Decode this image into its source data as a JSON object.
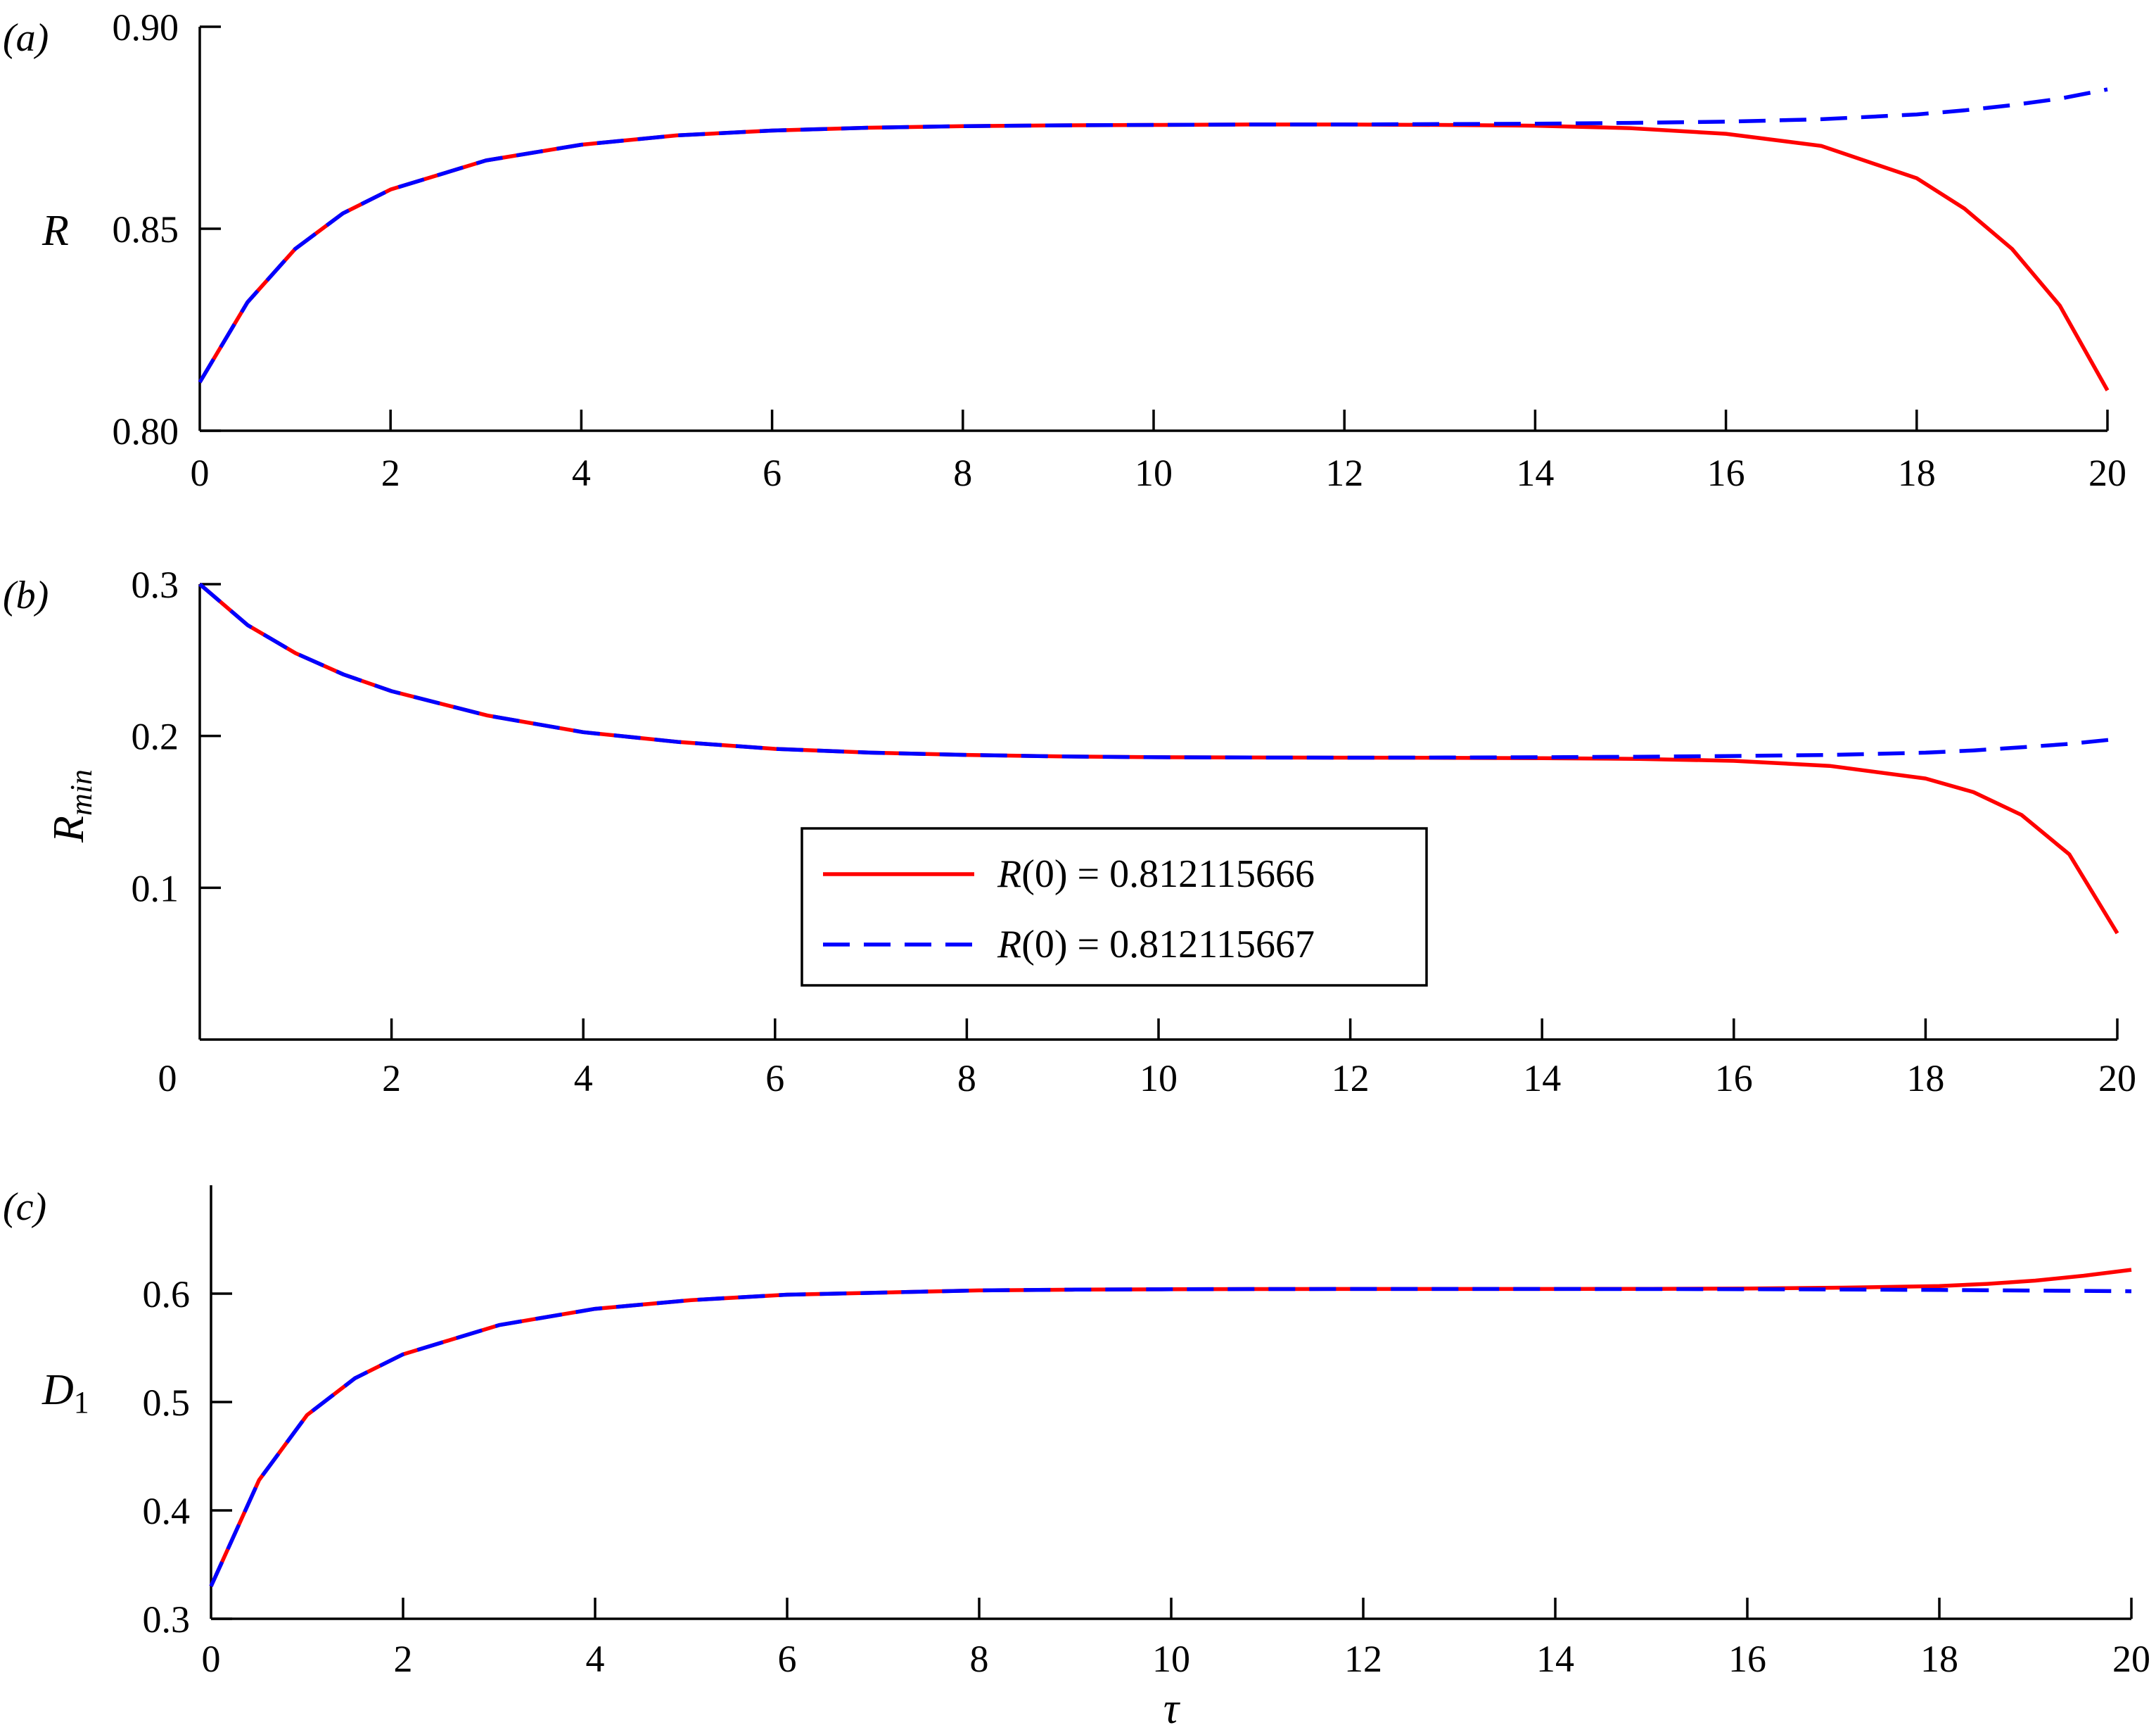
{
  "chart_data": [
    {
      "type": "line",
      "panel_label": "(a)",
      "ylabel": "R",
      "xlabel": "",
      "xlim": [
        0,
        20
      ],
      "ylim": [
        0.8,
        0.9
      ],
      "xticks": [
        "0",
        "2",
        "4",
        "6",
        "8",
        "10",
        "12",
        "14",
        "16",
        "18",
        "20"
      ],
      "xtick_values": [
        0,
        2,
        4,
        6,
        8,
        10,
        12,
        14,
        16,
        18,
        20
      ],
      "yticks": [
        "0.80",
        "0.85",
        "0.90"
      ],
      "ytick_values": [
        0.8,
        0.85,
        0.9
      ],
      "x": [
        0,
        0.5,
        1,
        1.5,
        2,
        3,
        4,
        5,
        6,
        7,
        8,
        9,
        10,
        11,
        12,
        13,
        14,
        15,
        16,
        17,
        18,
        18.5,
        19,
        19.5,
        20
      ],
      "series": [
        {
          "color": "#ff0000",
          "dash": "solid",
          "values": [
            0.812,
            0.8318,
            0.845,
            0.8538,
            0.8597,
            0.8669,
            0.8708,
            0.8731,
            0.8743,
            0.875,
            0.8754,
            0.8756,
            0.8757,
            0.8758,
            0.8758,
            0.8757,
            0.8755,
            0.8749,
            0.8735,
            0.8705,
            0.8625,
            0.855,
            0.845,
            0.831,
            0.81
          ]
        },
        {
          "color": "#0000ff",
          "dash": "dashed",
          "values": [
            0.812,
            0.8318,
            0.845,
            0.8538,
            0.8597,
            0.8669,
            0.8708,
            0.8731,
            0.8743,
            0.875,
            0.8754,
            0.8756,
            0.8757,
            0.8758,
            0.8758,
            0.8759,
            0.876,
            0.8762,
            0.8765,
            0.8771,
            0.8783,
            0.8793,
            0.8806,
            0.8822,
            0.8845
          ]
        }
      ],
      "legend": null
    },
    {
      "type": "line",
      "panel_label": "(b)",
      "ylabel": "R",
      "ylabel_sub": "min",
      "xlabel": "",
      "xlim": [
        0,
        20
      ],
      "ylim": [
        0.0,
        0.3
      ],
      "xticks": [
        "0",
        "2",
        "4",
        "6",
        "8",
        "10",
        "12",
        "14",
        "16",
        "18",
        "20"
      ],
      "xtick_values": [
        0,
        2,
        4,
        6,
        8,
        10,
        12,
        14,
        16,
        18,
        20
      ],
      "yticks": [
        "0.1",
        "0.2",
        "0.3"
      ],
      "ytick_values": [
        0.1,
        0.2,
        0.3
      ],
      "x": [
        0,
        0.5,
        1,
        1.5,
        2,
        3,
        4,
        5,
        6,
        7,
        8,
        9,
        10,
        11,
        12,
        13,
        14,
        15,
        16,
        17,
        18,
        18.5,
        19,
        19.5,
        20
      ],
      "series": [
        {
          "name": "R(0) = 0.812115666",
          "color": "#ff0000",
          "dash": "solid",
          "values": [
            0.3,
            0.273,
            0.2545,
            0.2405,
            0.2295,
            0.2135,
            0.2025,
            0.196,
            0.1915,
            0.189,
            0.1875,
            0.1865,
            0.186,
            0.1858,
            0.1857,
            0.1856,
            0.1854,
            0.1849,
            0.1836,
            0.1803,
            0.172,
            0.163,
            0.148,
            0.122,
            0.07
          ]
        },
        {
          "name": "R(0) = 0.812115667",
          "color": "#0000ff",
          "dash": "dashed",
          "values": [
            0.3,
            0.273,
            0.2545,
            0.2405,
            0.2295,
            0.2135,
            0.2025,
            0.196,
            0.1915,
            0.189,
            0.1875,
            0.1865,
            0.186,
            0.1858,
            0.1857,
            0.1858,
            0.186,
            0.1863,
            0.1868,
            0.1875,
            0.189,
            0.1905,
            0.1925,
            0.1948,
            0.198
          ]
        }
      ],
      "legend": {
        "position": "center",
        "entries": [
          {
            "prefix": "R",
            "text": "(0) = 0.812115666",
            "color": "#ff0000",
            "dash": "solid"
          },
          {
            "prefix": "R",
            "text": "(0) = 0.812115667",
            "color": "#0000ff",
            "dash": "dashed"
          }
        ]
      }
    },
    {
      "type": "line",
      "panel_label": "(c)",
      "ylabel": "D",
      "ylabel_sub": "1",
      "xlabel": "τ",
      "xlim": [
        0,
        20
      ],
      "ylim": [
        0.3,
        0.7
      ],
      "xticks": [
        "0",
        "2",
        "4",
        "6",
        "8",
        "10",
        "12",
        "14",
        "16",
        "18",
        "20"
      ],
      "xtick_values": [
        0,
        2,
        4,
        6,
        8,
        10,
        12,
        14,
        16,
        18,
        20
      ],
      "yticks": [
        "0.3",
        "0.4",
        "0.5",
        "0.6"
      ],
      "ytick_values": [
        0.3,
        0.4,
        0.5,
        0.6
      ],
      "x": [
        0,
        0.5,
        1,
        1.5,
        2,
        3,
        4,
        5,
        6,
        7,
        8,
        9,
        10,
        11,
        12,
        13,
        14,
        15,
        16,
        17,
        18,
        18.5,
        19,
        19.5,
        20
      ],
      "series": [
        {
          "color": "#ff0000",
          "dash": "solid",
          "values": [
            0.33,
            0.428,
            0.488,
            0.522,
            0.544,
            0.571,
            0.586,
            0.594,
            0.599,
            0.601,
            0.603,
            0.6037,
            0.604,
            0.6042,
            0.6043,
            0.6043,
            0.6043,
            0.6044,
            0.6047,
            0.6055,
            0.607,
            0.609,
            0.612,
            0.6165,
            0.622
          ]
        },
        {
          "color": "#0000ff",
          "dash": "dashed",
          "values": [
            0.33,
            0.428,
            0.488,
            0.522,
            0.544,
            0.571,
            0.586,
            0.594,
            0.599,
            0.601,
            0.603,
            0.6037,
            0.604,
            0.6042,
            0.6043,
            0.6043,
            0.6043,
            0.6042,
            0.6041,
            0.6038,
            0.6034,
            0.6031,
            0.6028,
            0.6025,
            0.6022
          ]
        }
      ],
      "legend": null
    }
  ]
}
